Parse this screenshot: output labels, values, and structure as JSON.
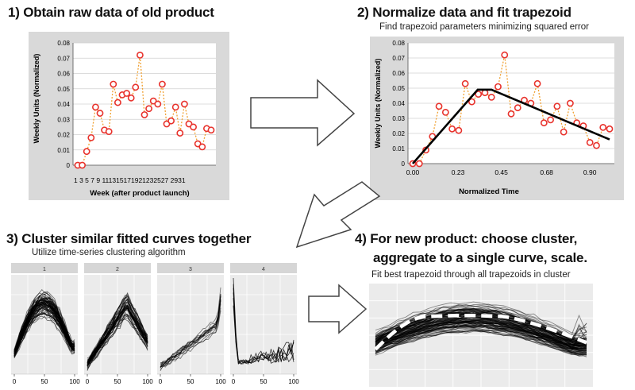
{
  "step1": {
    "title": "1) Obtain raw data of old product"
  },
  "step2": {
    "title": "2) Normalize data and fit trapezoid",
    "subtitle": "Find trapezoid parameters minimizing squared error"
  },
  "step3": {
    "title": "3) Cluster similar fitted curves together",
    "subtitle": "Utilize time-series clustering algorithm"
  },
  "step4": {
    "title_line1": "4) For new product: choose cluster,",
    "title_line2": "aggregate to a single curve, scale.",
    "subtitle": "Fit best trapezoid through all trapezoids in cluster"
  },
  "colors": {
    "point_stroke": "#e8322c",
    "dotted_line": "#f0a030",
    "trapezoid": "#000000",
    "panel_bg": "#d9d9d9",
    "facet_bg": "#ebebeb"
  },
  "chart_data": [
    {
      "type": "scatter",
      "title": "",
      "xlabel": "Week (after product launch)",
      "ylabel": "Weekly Units (Normalized)",
      "ylim": [
        0,
        0.08
      ],
      "yticks": [
        "0",
        "0.01",
        "0.02",
        "0.03",
        "0.04",
        "0.05",
        "0.06",
        "0.07",
        "0.08"
      ],
      "xticks_text": "1 3 5 7 9 111315171921232527 2931",
      "x": [
        1,
        2,
        3,
        4,
        5,
        6,
        7,
        8,
        9,
        10,
        11,
        12,
        13,
        14,
        15,
        16,
        17,
        18,
        19,
        20,
        21,
        22,
        23,
        24,
        25,
        26,
        27,
        28,
        29,
        30,
        31
      ],
      "y": [
        0.0,
        0.0,
        0.009,
        0.018,
        0.038,
        0.034,
        0.023,
        0.022,
        0.053,
        0.041,
        0.046,
        0.047,
        0.044,
        0.051,
        0.072,
        0.033,
        0.037,
        0.042,
        0.04,
        0.053,
        0.027,
        0.029,
        0.038,
        0.021,
        0.04,
        0.027,
        0.025,
        0.014,
        0.012,
        0.024,
        0.023
      ]
    },
    {
      "type": "line",
      "title": "",
      "xlabel": "Normalized Time",
      "ylabel": "Weekly Units (Normalized)",
      "ylim": [
        0,
        0.08
      ],
      "yticks": [
        "0",
        "0.01",
        "0.02",
        "0.03",
        "0.04",
        "0.05",
        "0.06",
        "0.07",
        "0.08"
      ],
      "xticks": [
        "0.00",
        "0.23",
        "0.45",
        "0.68",
        "0.90"
      ],
      "trapezoid": {
        "x": [
          0.0,
          0.33,
          0.4,
          1.0
        ],
        "y": [
          0.0,
          0.049,
          0.049,
          0.016
        ]
      }
    },
    {
      "type": "line",
      "title": "",
      "facets": [
        "1",
        "2",
        "3",
        "4"
      ],
      "xticks": [
        "0",
        "50",
        "100"
      ]
    },
    {
      "type": "line",
      "title": "",
      "aggregate": {
        "x": [
          0,
          0.25,
          0.6,
          1.0
        ],
        "y": [
          0.35,
          0.7,
          0.7,
          0.42
        ]
      }
    }
  ]
}
